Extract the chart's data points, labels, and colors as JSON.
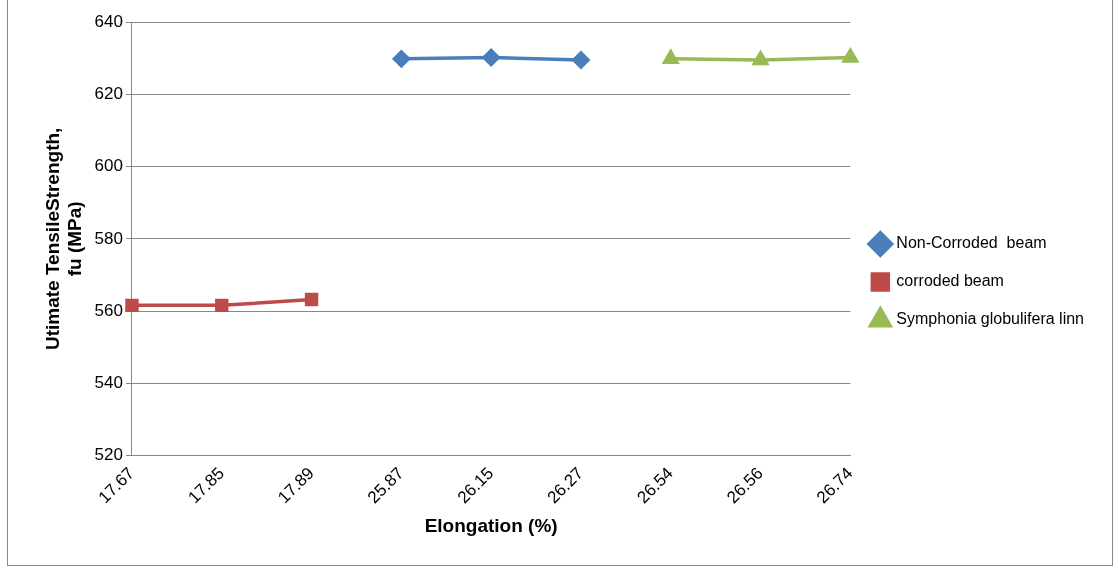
{
  "chart_data": {
    "type": "line",
    "xlabel": "Elongation (%)",
    "ylabel": "Utimate TensileStrength, fu (MPa)",
    "categories": [
      "17.67",
      "17.85",
      "17.89",
      "25.87",
      "26.15",
      "26.27",
      "26.54",
      "26.56",
      "26.74"
    ],
    "series": [
      {
        "name": "Non-Corroded  beam",
        "color": "#4a7ebb",
        "marker": "diamond",
        "values": [
          null,
          null,
          null,
          629.8,
          630.2,
          629.5,
          null,
          null,
          null
        ]
      },
      {
        "name": "corroded beam",
        "color": "#be4b48",
        "marker": "square",
        "values": [
          561.6,
          561.6,
          563.2,
          null,
          null,
          null,
          null,
          null,
          null
        ]
      },
      {
        "name": "Symphonia globulifera linn",
        "color": "#98b954",
        "marker": "triangle",
        "values": [
          null,
          null,
          null,
          null,
          null,
          null,
          629.8,
          629.5,
          630.2
        ]
      }
    ],
    "ylim": [
      520,
      640
    ],
    "yticks": [
      520,
      540,
      560,
      580,
      600,
      620,
      640
    ],
    "grid": "y",
    "legend": "right",
    "line_style": "solid"
  }
}
